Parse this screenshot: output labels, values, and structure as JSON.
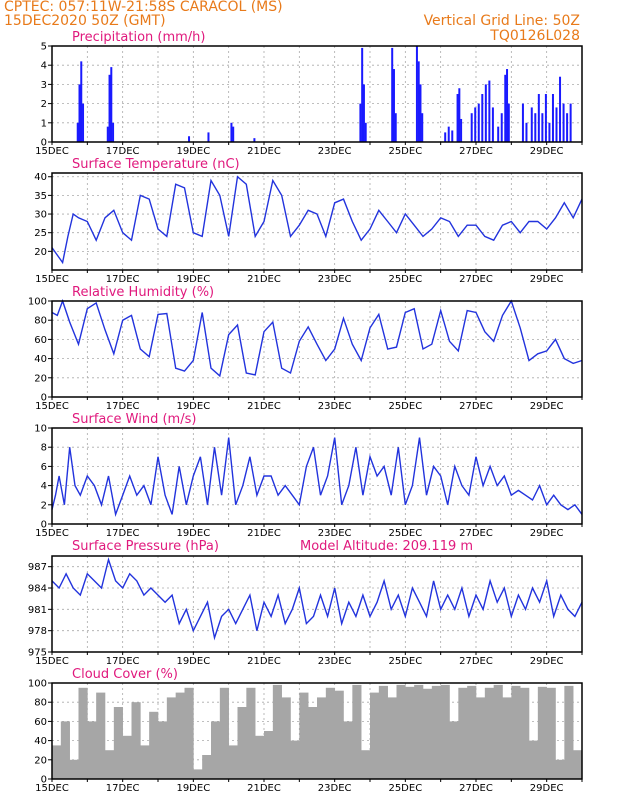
{
  "header": {
    "line1": "CPTEC:  057:11W-21:58S  CARACOL (MS)",
    "line2": "15DEC2020 50Z (GMT)",
    "right1": "Vertical Grid Line: 50Z",
    "right2": "TQ0126L028"
  },
  "date_labels": [
    "15DEC",
    "17DEC",
    "19DEC",
    "21DEC",
    "23DEC",
    "25DEC",
    "27DEC",
    "29DEC"
  ],
  "colors": {
    "header": "#e87a1a",
    "title": "#e0197d",
    "line": "#2233dd",
    "bars": "#1a1aff",
    "cloud": "#a6a6a6"
  },
  "panels": {
    "precip": {
      "title": "Precipitation (mm/h)"
    },
    "temp": {
      "title": "Surface Temperature (nC)"
    },
    "rh": {
      "title": "Relative Humidity (%)"
    },
    "wind": {
      "title": "Surface Wind (m/s)"
    },
    "pres": {
      "title": "Surface Pressure (hPa)",
      "extra": "Model Altitude: 209.119 m"
    },
    "cloud": {
      "title": "Cloud Cover (%)"
    }
  },
  "chart_data": [
    {
      "id": "precip",
      "type": "bar",
      "title": "Precipitation (mm/h)",
      "ylim": [
        0,
        5
      ],
      "yticks": [
        0,
        1,
        2,
        3,
        4,
        5
      ],
      "x_unit": "days since 15DEC2020",
      "xlim": [
        0,
        15
      ],
      "bars": [
        [
          0.7,
          1.0
        ],
        [
          0.75,
          3.0
        ],
        [
          0.8,
          4.2
        ],
        [
          0.85,
          2.0
        ],
        [
          1.55,
          0.8
        ],
        [
          1.6,
          3.5
        ],
        [
          1.65,
          3.9
        ],
        [
          1.7,
          1.0
        ],
        [
          3.85,
          0.3
        ],
        [
          4.4,
          0.5
        ],
        [
          5.05,
          1.0
        ],
        [
          5.1,
          0.8
        ],
        [
          5.7,
          0.2
        ],
        [
          8.7,
          2.0
        ],
        [
          8.75,
          4.9
        ],
        [
          8.8,
          3.0
        ],
        [
          8.85,
          1.0
        ],
        [
          9.6,
          4.9
        ],
        [
          9.65,
          3.8
        ],
        [
          9.7,
          1.5
        ],
        [
          10.3,
          5.0
        ],
        [
          10.35,
          4.2
        ],
        [
          10.4,
          3.0
        ],
        [
          10.45,
          1.5
        ],
        [
          11.1,
          0.5
        ],
        [
          11.2,
          0.8
        ],
        [
          11.3,
          0.6
        ],
        [
          11.45,
          2.5
        ],
        [
          11.5,
          2.8
        ],
        [
          11.55,
          1.2
        ],
        [
          11.85,
          1.5
        ],
        [
          11.95,
          1.8
        ],
        [
          12.05,
          2.0
        ],
        [
          12.15,
          2.5
        ],
        [
          12.25,
          3.0
        ],
        [
          12.35,
          3.2
        ],
        [
          12.45,
          1.8
        ],
        [
          12.6,
          0.8
        ],
        [
          12.7,
          1.5
        ],
        [
          12.8,
          3.5
        ],
        [
          12.85,
          3.8
        ],
        [
          12.9,
          2.0
        ],
        [
          13.3,
          2.0
        ],
        [
          13.4,
          1.0
        ],
        [
          13.55,
          1.8
        ],
        [
          13.65,
          1.5
        ],
        [
          13.75,
          2.5
        ],
        [
          13.85,
          1.5
        ],
        [
          13.95,
          2.5
        ],
        [
          14.05,
          1.0
        ],
        [
          14.15,
          2.5
        ],
        [
          14.25,
          1.8
        ],
        [
          14.35,
          3.4
        ],
        [
          14.45,
          2.0
        ],
        [
          14.55,
          1.5
        ],
        [
          14.65,
          2.0
        ]
      ]
    },
    {
      "id": "temp",
      "type": "line",
      "title": "Surface Temperature (nC)",
      "ylim": [
        15,
        41
      ],
      "yticks": [
        20,
        25,
        30,
        35,
        40
      ],
      "x_unit": "days since 15DEC2020",
      "xlim": [
        0,
        15
      ],
      "x": [
        0,
        0.15,
        0.3,
        0.45,
        0.6,
        0.75,
        1.0,
        1.25,
        1.5,
        1.75,
        2.0,
        2.25,
        2.5,
        2.75,
        3.0,
        3.25,
        3.5,
        3.75,
        4.0,
        4.25,
        4.5,
        4.75,
        5.0,
        5.25,
        5.5,
        5.75,
        6.0,
        6.25,
        6.5,
        6.75,
        7.0,
        7.25,
        7.5,
        7.75,
        8.0,
        8.25,
        8.5,
        8.75,
        9.0,
        9.25,
        9.5,
        9.75,
        10.0,
        10.25,
        10.5,
        10.75,
        11.0,
        11.25,
        11.5,
        11.75,
        12.0,
        12.25,
        12.5,
        12.75,
        13.0,
        13.25,
        13.5,
        13.75,
        14.0,
        14.25,
        14.5,
        14.75,
        15.0
      ],
      "y": [
        21,
        19,
        17,
        24,
        30,
        29,
        28,
        23,
        29,
        31,
        25,
        23,
        35,
        34,
        26,
        24,
        38,
        37,
        25,
        24,
        39,
        35,
        24,
        40,
        38,
        24,
        28,
        39,
        35,
        24,
        27,
        31,
        30,
        24,
        33,
        34,
        28,
        23,
        26,
        31,
        28,
        25,
        30,
        27,
        24,
        26,
        29,
        28,
        24,
        27,
        27,
        24,
        23,
        27,
        28,
        25,
        28,
        28,
        26,
        29,
        33,
        29,
        34
      ]
    },
    {
      "id": "rh",
      "type": "line",
      "title": "Relative Humidity (%)",
      "ylim": [
        0,
        100
      ],
      "yticks": [
        0,
        20,
        40,
        60,
        80,
        100
      ],
      "x_unit": "days since 15DEC2020",
      "xlim": [
        0,
        15
      ],
      "x": [
        0,
        0.15,
        0.3,
        0.5,
        0.75,
        1.0,
        1.25,
        1.5,
        1.75,
        2.0,
        2.25,
        2.5,
        2.75,
        3.0,
        3.25,
        3.5,
        3.75,
        4.0,
        4.25,
        4.5,
        4.75,
        5.0,
        5.25,
        5.5,
        5.75,
        6.0,
        6.25,
        6.5,
        6.75,
        7.0,
        7.25,
        7.5,
        7.75,
        8.0,
        8.25,
        8.5,
        8.75,
        9.0,
        9.25,
        9.5,
        9.75,
        10.0,
        10.25,
        10.5,
        10.75,
        11.0,
        11.25,
        11.5,
        11.75,
        12.0,
        12.25,
        12.5,
        12.75,
        13.0,
        13.25,
        13.5,
        13.75,
        14.0,
        14.25,
        14.5,
        14.75,
        15.0
      ],
      "y": [
        88,
        85,
        100,
        78,
        55,
        92,
        98,
        70,
        45,
        80,
        85,
        50,
        42,
        86,
        87,
        30,
        27,
        38,
        88,
        30,
        22,
        65,
        75,
        25,
        23,
        68,
        78,
        30,
        25,
        58,
        73,
        55,
        38,
        50,
        82,
        55,
        38,
        72,
        86,
        50,
        52,
        88,
        92,
        50,
        55,
        90,
        58,
        48,
        90,
        88,
        68,
        58,
        85,
        100,
        72,
        38,
        45,
        48,
        60,
        40,
        35,
        38
      ]
    },
    {
      "id": "wind",
      "type": "line",
      "title": "Surface Wind (m/s)",
      "ylim": [
        0,
        10
      ],
      "yticks": [
        0,
        2,
        4,
        6,
        8,
        10
      ],
      "x_unit": "days since 15DEC2020",
      "xlim": [
        0,
        15
      ],
      "x": [
        0,
        0.1,
        0.2,
        0.35,
        0.5,
        0.65,
        0.8,
        1.0,
        1.2,
        1.4,
        1.6,
        1.8,
        2.0,
        2.2,
        2.4,
        2.6,
        2.8,
        3.0,
        3.2,
        3.4,
        3.6,
        3.8,
        4.0,
        4.2,
        4.4,
        4.6,
        4.8,
        5.0,
        5.2,
        5.4,
        5.6,
        5.8,
        6.0,
        6.2,
        6.4,
        6.6,
        6.8,
        7.0,
        7.2,
        7.4,
        7.6,
        7.8,
        8.0,
        8.2,
        8.4,
        8.6,
        8.8,
        9.0,
        9.2,
        9.4,
        9.6,
        9.8,
        10.0,
        10.2,
        10.4,
        10.6,
        10.8,
        11.0,
        11.2,
        11.4,
        11.6,
        11.8,
        12.0,
        12.2,
        12.4,
        12.6,
        12.8,
        13.0,
        13.2,
        13.4,
        13.6,
        13.8,
        14.0,
        14.2,
        14.4,
        14.6,
        14.8,
        15.0
      ],
      "y": [
        1.5,
        3,
        5,
        2,
        8,
        4,
        3,
        5,
        4,
        2,
        5,
        1,
        3,
        5,
        3,
        4,
        2,
        7,
        3,
        1,
        6,
        2,
        5,
        7,
        2,
        8,
        3,
        9,
        2,
        4,
        7,
        3,
        5,
        5,
        3,
        4,
        3,
        2,
        6,
        8,
        3,
        5,
        9,
        2,
        4,
        8,
        3,
        7,
        5,
        6,
        3,
        8,
        2,
        4,
        9,
        3,
        6,
        5,
        2,
        6,
        4,
        3,
        7,
        4,
        6,
        4,
        5,
        3,
        3.5,
        3,
        2.5,
        4,
        2,
        3,
        2,
        1.5,
        2,
        1
      ]
    },
    {
      "id": "pres",
      "type": "line",
      "title": "Surface Pressure (hPa)",
      "ylim": [
        975,
        988.5
      ],
      "yticks": [
        975,
        978,
        981,
        984,
        987
      ],
      "x_unit": "days since 15DEC2020",
      "xlim": [
        0,
        15
      ],
      "x": [
        0,
        0.2,
        0.4,
        0.6,
        0.8,
        1.0,
        1.2,
        1.4,
        1.6,
        1.8,
        2.0,
        2.2,
        2.4,
        2.6,
        2.8,
        3.0,
        3.2,
        3.4,
        3.6,
        3.8,
        4.0,
        4.2,
        4.4,
        4.6,
        4.8,
        5.0,
        5.2,
        5.4,
        5.6,
        5.8,
        6.0,
        6.2,
        6.4,
        6.6,
        6.8,
        7.0,
        7.2,
        7.4,
        7.6,
        7.8,
        8.0,
        8.2,
        8.4,
        8.6,
        8.8,
        9.0,
        9.2,
        9.4,
        9.6,
        9.8,
        10.0,
        10.2,
        10.4,
        10.6,
        10.8,
        11.0,
        11.2,
        11.4,
        11.6,
        11.8,
        12.0,
        12.2,
        12.4,
        12.6,
        12.8,
        13.0,
        13.2,
        13.4,
        13.6,
        13.8,
        14.0,
        14.2,
        14.4,
        14.6,
        14.8,
        15.0
      ],
      "y": [
        985,
        984,
        986,
        984,
        983,
        986,
        985,
        984,
        988,
        985,
        984,
        986,
        985,
        983,
        984,
        983,
        982,
        983,
        979,
        981,
        978,
        980,
        982,
        977,
        980,
        981,
        979,
        981,
        983,
        978,
        982,
        980,
        983,
        979,
        981,
        984,
        979,
        980,
        983,
        980,
        984,
        979,
        982,
        980,
        983,
        980,
        982,
        985,
        981,
        983,
        980,
        984,
        982,
        980,
        985,
        981,
        983,
        981,
        984,
        980,
        983,
        981,
        985,
        982,
        984,
        980,
        983,
        981,
        984,
        982,
        985,
        980,
        983,
        981,
        980,
        982
      ]
    },
    {
      "id": "cloud",
      "type": "bar",
      "title": "Cloud Cover (%)",
      "ylim": [
        0,
        100
      ],
      "yticks": [
        0,
        20,
        40,
        60,
        80,
        100
      ],
      "x_unit": "days since 15DEC2020",
      "xlim": [
        0,
        15
      ],
      "x": [
        0.0,
        0.25,
        0.5,
        0.75,
        1.0,
        1.25,
        1.5,
        1.75,
        2.0,
        2.25,
        2.5,
        2.75,
        3.0,
        3.25,
        3.5,
        3.75,
        4.0,
        4.25,
        4.5,
        4.75,
        5.0,
        5.25,
        5.5,
        5.75,
        6.0,
        6.25,
        6.5,
        6.75,
        7.0,
        7.25,
        7.5,
        7.75,
        8.0,
        8.25,
        8.5,
        8.75,
        9.0,
        9.25,
        9.5,
        9.75,
        10.0,
        10.25,
        10.5,
        10.75,
        11.0,
        11.25,
        11.5,
        11.75,
        12.0,
        12.25,
        12.5,
        12.75,
        13.0,
        13.25,
        13.5,
        13.75,
        14.0,
        14.25,
        14.5,
        14.75
      ],
      "values": [
        35,
        60,
        20,
        95,
        60,
        90,
        30,
        75,
        45,
        80,
        35,
        70,
        60,
        85,
        90,
        95,
        10,
        25,
        60,
        95,
        35,
        75,
        95,
        45,
        50,
        98,
        85,
        40,
        90,
        75,
        85,
        95,
        92,
        60,
        98,
        30,
        90,
        97,
        85,
        98,
        96,
        98,
        94,
        97,
        98,
        60,
        95,
        97,
        85,
        95,
        98,
        85,
        97,
        95,
        40,
        96,
        95,
        20,
        97,
        30
      ]
    }
  ]
}
